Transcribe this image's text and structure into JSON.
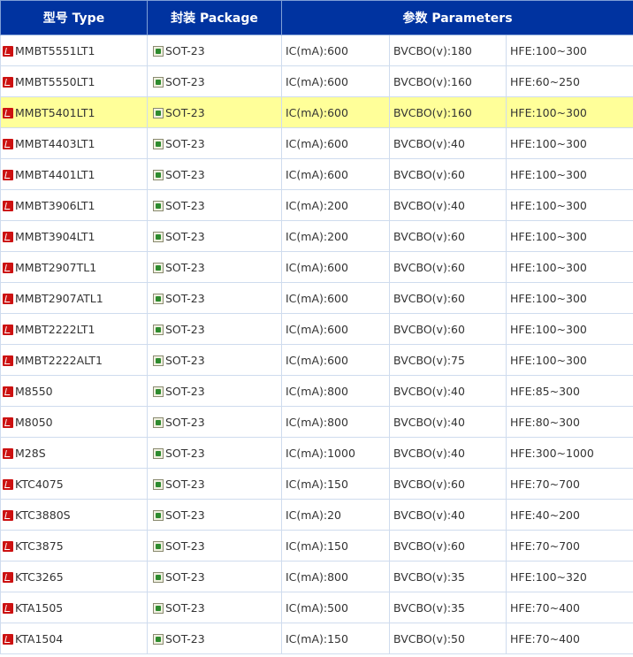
{
  "header": {
    "type": "型号 Type",
    "package": "封装 Package",
    "parameters": "参数 Parameters"
  },
  "highlight_color": "#ffff99",
  "header_color": "#0033a0",
  "icons": {
    "type_icon": "pdf-icon",
    "package_icon": "chip-icon"
  },
  "rows": [
    {
      "type": "MMBT5551LT1",
      "package": "SOT-23",
      "ic": "IC(mA):600",
      "bv": "BVCBO(v):180",
      "hfe": "HFE:100~300"
    },
    {
      "type": "MMBT5550LT1",
      "package": "SOT-23",
      "ic": "IC(mA):600",
      "bv": "BVCBO(v):160",
      "hfe": "HFE:60~250"
    },
    {
      "type": "MMBT5401LT1",
      "package": "SOT-23",
      "ic": "IC(mA):600",
      "bv": "BVCBO(v):160",
      "hfe": "HFE:100~300",
      "highlighted": true
    },
    {
      "type": "MMBT4403LT1",
      "package": "SOT-23",
      "ic": "IC(mA):600",
      "bv": "BVCBO(v):40",
      "hfe": "HFE:100~300"
    },
    {
      "type": "MMBT4401LT1",
      "package": "SOT-23",
      "ic": "IC(mA):600",
      "bv": "BVCBO(v):60",
      "hfe": "HFE:100~300"
    },
    {
      "type": "MMBT3906LT1",
      "package": "SOT-23",
      "ic": "IC(mA):200",
      "bv": "BVCBO(v):40",
      "hfe": "HFE:100~300"
    },
    {
      "type": "MMBT3904LT1",
      "package": "SOT-23",
      "ic": "IC(mA):200",
      "bv": "BVCBO(v):60",
      "hfe": "HFE:100~300"
    },
    {
      "type": "MMBT2907TL1",
      "package": "SOT-23",
      "ic": "IC(mA):600",
      "bv": "BVCBO(v):60",
      "hfe": "HFE:100~300"
    },
    {
      "type": "MMBT2907ATL1",
      "package": "SOT-23",
      "ic": "IC(mA):600",
      "bv": "BVCBO(v):60",
      "hfe": "HFE:100~300"
    },
    {
      "type": "MMBT2222LT1",
      "package": "SOT-23",
      "ic": "IC(mA):600",
      "bv": "BVCBO(v):60",
      "hfe": "HFE:100~300"
    },
    {
      "type": "MMBT2222ALT1",
      "package": "SOT-23",
      "ic": "IC(mA):600",
      "bv": "BVCBO(v):75",
      "hfe": "HFE:100~300"
    },
    {
      "type": "M8550",
      "package": "SOT-23",
      "ic": "IC(mA):800",
      "bv": "BVCBO(v):40",
      "hfe": "HFE:85~300"
    },
    {
      "type": "M8050",
      "package": "SOT-23",
      "ic": "IC(mA):800",
      "bv": "BVCBO(v):40",
      "hfe": "HFE:80~300"
    },
    {
      "type": "M28S",
      "package": "SOT-23",
      "ic": "IC(mA):1000",
      "bv": "BVCBO(v):40",
      "hfe": "HFE:300~1000"
    },
    {
      "type": "KTC4075",
      "package": "SOT-23",
      "ic": "IC(mA):150",
      "bv": "BVCBO(v):60",
      "hfe": "HFE:70~700"
    },
    {
      "type": "KTC3880S",
      "package": "SOT-23",
      "ic": "IC(mA):20",
      "bv": "BVCBO(v):40",
      "hfe": "HFE:40~200"
    },
    {
      "type": "KTC3875",
      "package": "SOT-23",
      "ic": "IC(mA):150",
      "bv": "BVCBO(v):60",
      "hfe": "HFE:70~700"
    },
    {
      "type": "KTC3265",
      "package": "SOT-23",
      "ic": "IC(mA):800",
      "bv": "BVCBO(v):35",
      "hfe": "HFE:100~320"
    },
    {
      "type": "KTA1505",
      "package": "SOT-23",
      "ic": "IC(mA):500",
      "bv": "BVCBO(v):35",
      "hfe": "HFE:70~400"
    },
    {
      "type": "KTA1504",
      "package": "SOT-23",
      "ic": "IC(mA):150",
      "bv": "BVCBO(v):50",
      "hfe": "HFE:70~400"
    }
  ]
}
